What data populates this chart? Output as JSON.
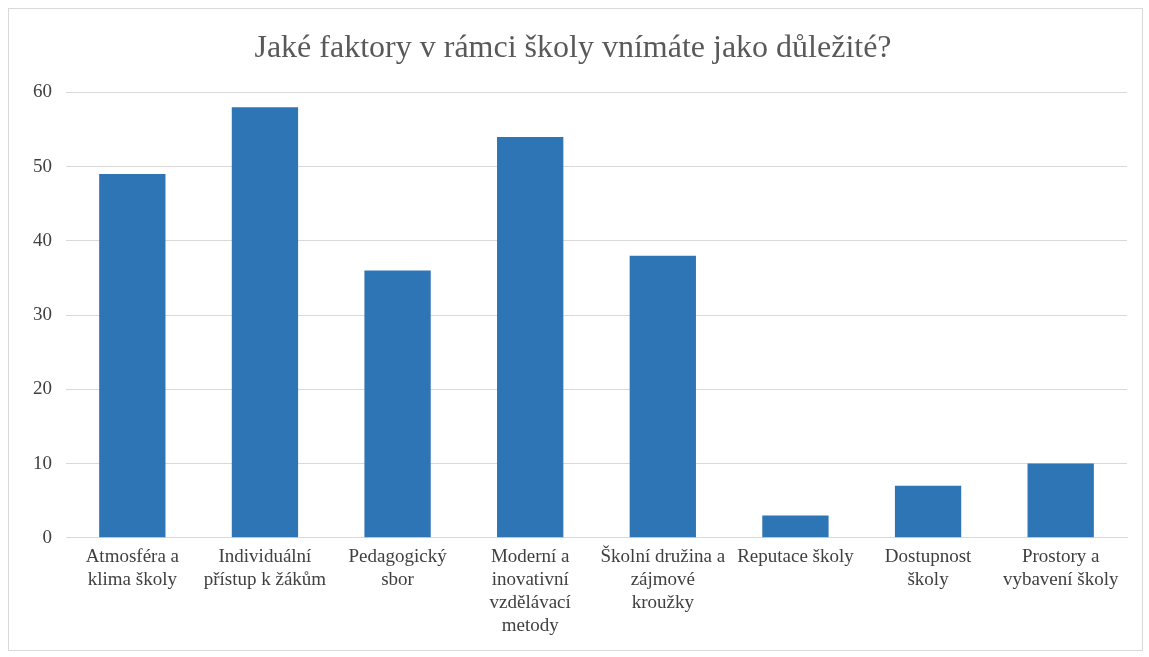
{
  "chart_data": {
    "type": "bar",
    "title": "Jaké faktory v rámci školy vnímáte jako důležité?",
    "categories": [
      "Atmosféra a klima školy",
      "Individuální přístup k žákům",
      "Pedagogický sbor",
      "Moderní a inovativní vzdělávací metody",
      "Školní družina a zájmové kroužky",
      "Reputace školy",
      "Dostupnost školy",
      "Prostory a vybavení školy"
    ],
    "values": [
      49,
      58,
      36,
      54,
      38,
      3,
      7,
      10
    ],
    "color": "#2e75b6",
    "ylim": [
      0,
      60
    ],
    "yticks": [
      0,
      10,
      20,
      30,
      40,
      50,
      60
    ],
    "grid": "y",
    "legend": false
  }
}
